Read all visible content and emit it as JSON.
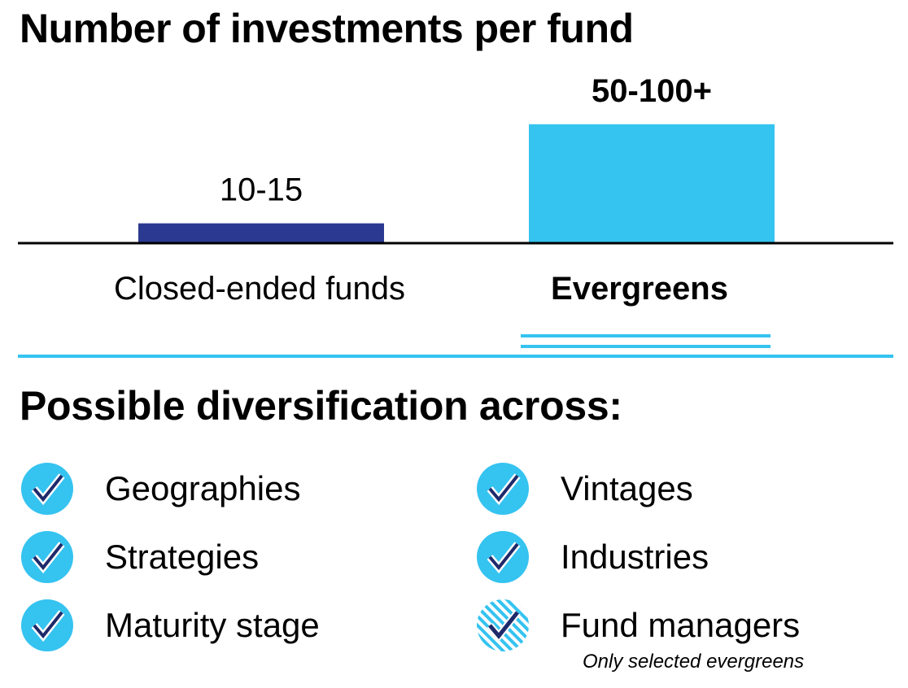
{
  "title": "Number of investments per fund",
  "chart_data": {
    "type": "bar",
    "categories": [
      "Closed-ended funds",
      "Evergreens"
    ],
    "value_labels": [
      "10-15",
      "50-100+"
    ],
    "values": [
      12.5,
      75
    ],
    "colors": [
      "#2b3990",
      "#35c3f0"
    ],
    "emphasized": [
      false,
      true
    ],
    "title": "Number of investments per fund",
    "xlabel": "",
    "ylabel": "",
    "ylim": [
      0,
      100
    ],
    "grid": false
  },
  "diversification": {
    "heading": "Possible diversification across:",
    "items": [
      {
        "label": "Geographies",
        "icon": "check-circle-icon"
      },
      {
        "label": "Strategies",
        "icon": "check-circle-icon"
      },
      {
        "label": "Maturity stage",
        "icon": "check-circle-icon"
      },
      {
        "label": "Vintages",
        "icon": "check-circle-icon"
      },
      {
        "label": "Industries",
        "icon": "check-circle-icon"
      },
      {
        "label": "Fund managers",
        "icon": "check-circle-striped-icon"
      }
    ],
    "note": "Only selected evergreens",
    "icon_color": "#35c3f0"
  }
}
